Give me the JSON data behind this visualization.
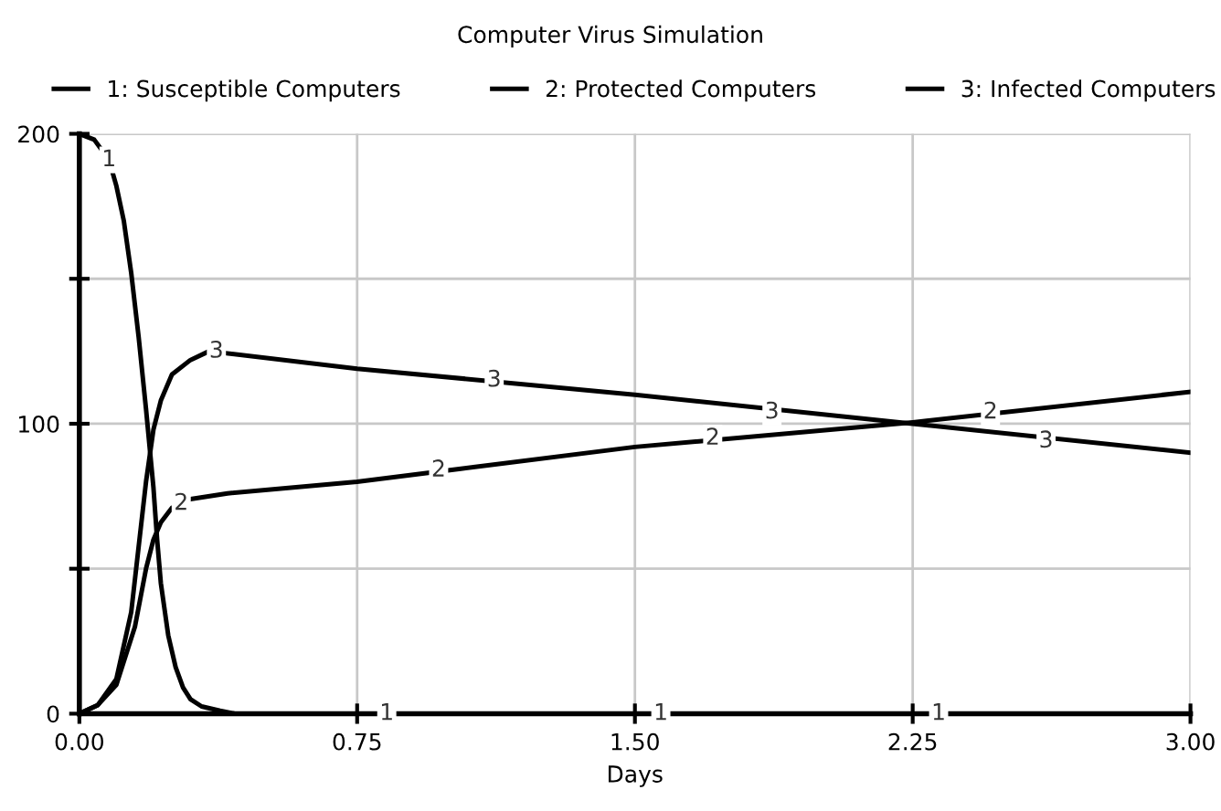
{
  "chart_data": {
    "type": "line",
    "title": "Computer Virus Simulation",
    "xlabel": "Days",
    "xlim": [
      0,
      3
    ],
    "xticks": [
      {
        "value": 0,
        "label": "0.00"
      },
      {
        "value": 0.75,
        "label": "0.75"
      },
      {
        "value": 1.5,
        "label": "1.50"
      },
      {
        "value": 2.25,
        "label": "2.25"
      },
      {
        "value": 3,
        "label": "3.00"
      }
    ],
    "ylim": [
      0,
      200
    ],
    "yticks": [
      0,
      {
        "value": 50,
        "label": null
      },
      100,
      {
        "value": 150,
        "label": null
      },
      200
    ],
    "grid": true,
    "legend": "top",
    "marker": "none",
    "line_style": "solid",
    "series": [
      {
        "name": "1: Susceptible Computers",
        "color": "#000000",
        "x": [
          0,
          0.04,
          0.08,
          0.1,
          0.12,
          0.14,
          0.16,
          0.18,
          0.2,
          0.21,
          0.22,
          0.24,
          0.26,
          0.28,
          0.3,
          0.33,
          0.38,
          0.42,
          3
        ],
        "values": [
          200,
          198,
          191,
          182,
          170,
          152,
          130,
          105,
          78,
          60,
          45,
          27,
          16,
          9,
          5,
          2.5,
          1,
          0,
          0
        ]
      },
      {
        "name": "2: Protected Computers",
        "color": "#000000",
        "x": [
          0,
          0.05,
          0.1,
          0.15,
          0.18,
          0.2,
          0.22,
          0.25,
          0.3,
          0.4,
          0.75,
          1.03,
          1.5,
          2.25,
          3
        ],
        "values": [
          0,
          3,
          10,
          30,
          50,
          60,
          66,
          71,
          74,
          76,
          80,
          84.5,
          92,
          100.5,
          111
        ]
      },
      {
        "name": "3: Infected Computers",
        "color": "#000000",
        "x": [
          0,
          0.05,
          0.1,
          0.14,
          0.18,
          0.2,
          0.22,
          0.25,
          0.3,
          0.35,
          0.75,
          1.5,
          2.25,
          3
        ],
        "values": [
          0,
          3,
          12,
          35,
          80,
          98,
          108,
          117,
          122,
          125,
          119,
          110,
          100,
          90
        ]
      }
    ],
    "annotations": [
      {
        "text": "1",
        "x": 0.08,
        "y": 191
      },
      {
        "text": "1",
        "x": 0.83,
        "y": 0
      },
      {
        "text": "1",
        "x": 1.57,
        "y": 0
      },
      {
        "text": "1",
        "x": 2.32,
        "y": 0
      },
      {
        "text": "2",
        "x": 0.275,
        "y": 72.5
      },
      {
        "text": "2",
        "x": 0.97,
        "y": 84
      },
      {
        "text": "2",
        "x": 1.71,
        "y": 95
      },
      {
        "text": "2",
        "x": 2.46,
        "y": 104
      },
      {
        "text": "3",
        "x": 0.37,
        "y": 125
      },
      {
        "text": "3",
        "x": 1.12,
        "y": 115
      },
      {
        "text": "3",
        "x": 1.87,
        "y": 104
      },
      {
        "text": "3",
        "x": 2.61,
        "y": 94
      }
    ]
  }
}
